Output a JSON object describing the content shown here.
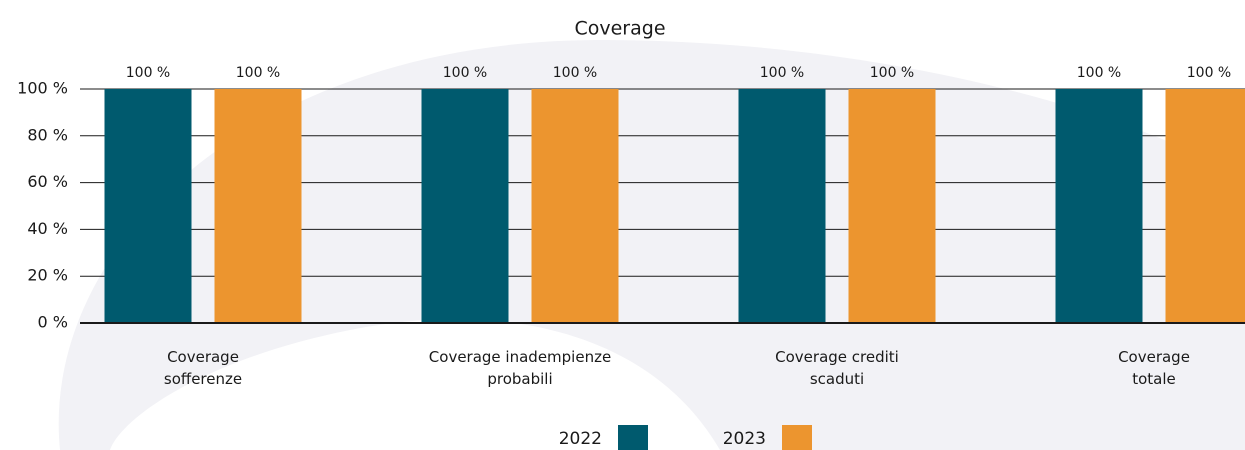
{
  "chart_data": {
    "type": "bar",
    "title": "Coverage",
    "categories": [
      "Coverage\nsofferenze",
      "Coverage inadempienze\nprobabili",
      "Coverage crediti\nscaduti",
      "Coverage\ntotale"
    ],
    "series": [
      {
        "name": "2022",
        "color": "#005a6e",
        "values": [
          100,
          100,
          100,
          100
        ],
        "value_labels": [
          "100 %",
          "100 %",
          "100 %",
          "100 %"
        ]
      },
      {
        "name": "2023",
        "color": "#ec952f",
        "values": [
          100,
          100,
          100,
          100
        ],
        "value_labels": [
          "100 %",
          "100 %",
          "100 %",
          "100 %"
        ]
      }
    ],
    "ylim": [
      0,
      100
    ],
    "yticks": [
      {
        "value": 0,
        "label": "0 %"
      },
      {
        "value": 20,
        "label": "20 %"
      },
      {
        "value": 40,
        "label": "40 %"
      },
      {
        "value": 60,
        "label": "60 %"
      },
      {
        "value": 80,
        "label": "80 %"
      },
      {
        "value": 100,
        "label": "100 %"
      }
    ],
    "grid": true
  }
}
